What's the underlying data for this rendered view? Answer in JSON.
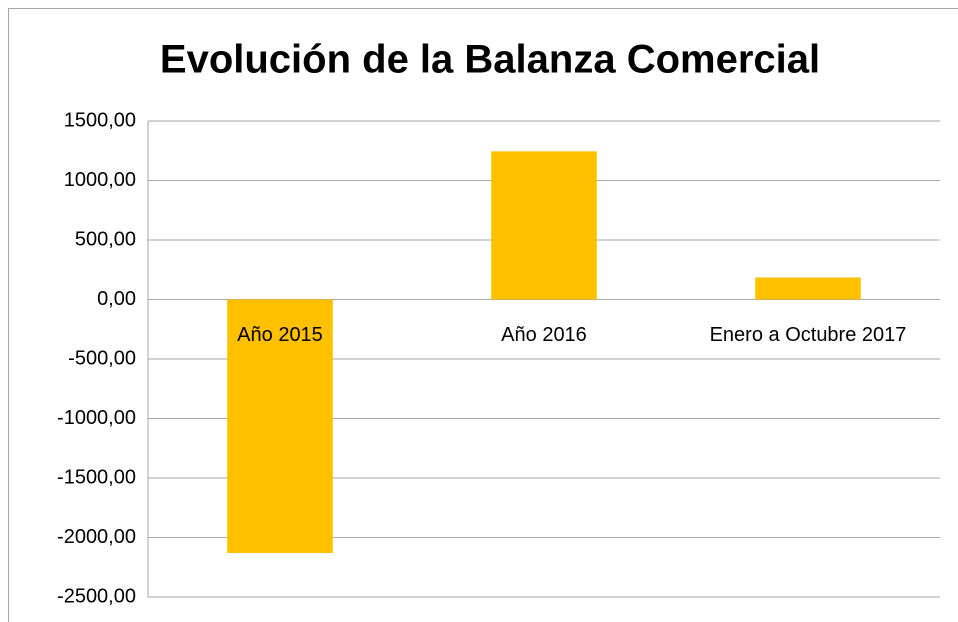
{
  "chart_data": {
    "type": "bar",
    "title": "Evolución de la Balanza Comercial",
    "categories": [
      "Año 2015",
      "Año 2016",
      "Enero a Octubre 2017"
    ],
    "values": [
      -2130,
      1245,
      185
    ],
    "color": "#ffc000",
    "ylim": [
      -2500,
      1500
    ],
    "yticks": [
      {
        "value": -2500,
        "label": "-2500,00"
      },
      {
        "value": -2000,
        "label": "-2000,00"
      },
      {
        "value": -1500,
        "label": "-1500,00"
      },
      {
        "value": -1000,
        "label": "-1000,00"
      },
      {
        "value": -500,
        "label": "-500,00"
      },
      {
        "value": 0,
        "label": "0,00"
      },
      {
        "value": 500,
        "label": "500,00"
      },
      {
        "value": 1000,
        "label": "1000,00"
      },
      {
        "value": 1500,
        "label": "1500,00"
      }
    ],
    "grid": true
  }
}
